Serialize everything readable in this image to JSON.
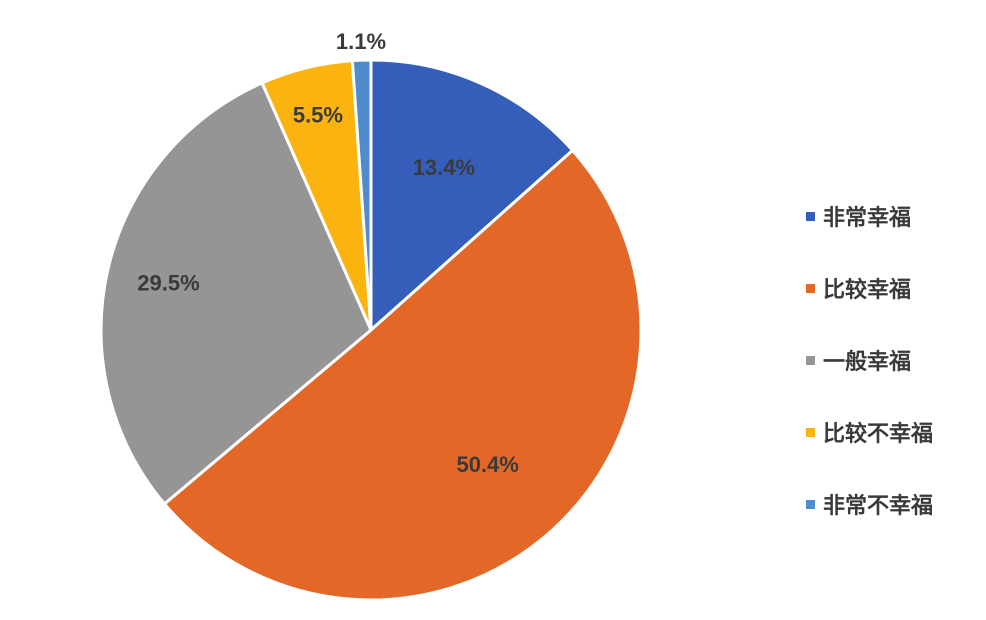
{
  "chart_data": {
    "type": "pie",
    "categories": [
      "非常幸福",
      "比较幸福",
      "一般幸福",
      "比较不幸福",
      "非常不幸福"
    ],
    "values": [
      13.4,
      50.4,
      29.5,
      5.5,
      1.1
    ],
    "data_labels": [
      "13.4%",
      "50.4%",
      "29.5%",
      "5.5%",
      "1.1%"
    ],
    "colors": [
      "#355EBA",
      "#E36827",
      "#959595",
      "#FBB30F",
      "#4E8CCB"
    ],
    "start_angle_deg": 0,
    "direction": "clockwise",
    "legend_position": "right",
    "title": ""
  }
}
